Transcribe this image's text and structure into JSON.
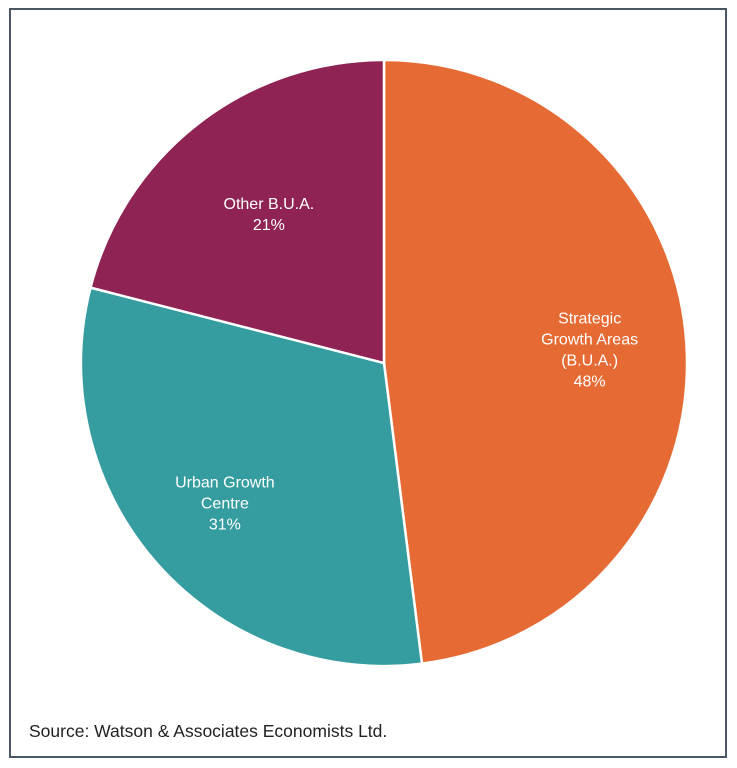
{
  "chart_data": {
    "type": "pie",
    "title": "",
    "slices": [
      {
        "label": [
          "Strategic",
          "Growth Areas",
          "(B.U.A.)"
        ],
        "value": 48,
        "value_label": "48%",
        "color": "#E66A33"
      },
      {
        "label": [
          "Urban Growth",
          "Centre"
        ],
        "value": 31,
        "value_label": "31%",
        "color": "#359C9F"
      },
      {
        "label": [
          "Other B.U.A."
        ],
        "value": 21,
        "value_label": "21%",
        "color": "#8F2354"
      }
    ],
    "start": "12 o'clock",
    "direction": "clockwise",
    "slice_border_color": "#ffffff"
  },
  "source": "Source: Watson & Associates Economists Ltd."
}
